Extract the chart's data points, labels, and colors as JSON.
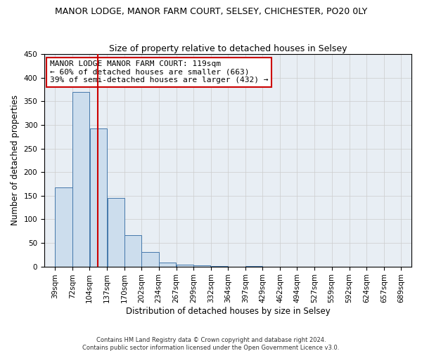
{
  "title": "MANOR LODGE, MANOR FARM COURT, SELSEY, CHICHESTER, PO20 0LY",
  "subtitle": "Size of property relative to detached houses in Selsey",
  "xlabel": "Distribution of detached houses by size in Selsey",
  "ylabel": "Number of detached properties",
  "property_size": 119,
  "property_label": "MANOR LODGE MANOR FARM COURT: 119sqm",
  "annotation_line1": "← 60% of detached houses are smaller (663)",
  "annotation_line2": "39% of semi-detached houses are larger (432) →",
  "bar_color": "#ccdded",
  "bar_edge_color": "#4477aa",
  "line_color": "#cc0000",
  "box_edge_color": "#cc0000",
  "ylim": [
    0,
    450
  ],
  "bin_edges": [
    39,
    72,
    104,
    137,
    170,
    202,
    234,
    267,
    299,
    332,
    364,
    397,
    429,
    462,
    494,
    527,
    559,
    592,
    624,
    657,
    689
  ],
  "counts": [
    167,
    370,
    293,
    145,
    67,
    30,
    8,
    4,
    3,
    1,
    0,
    1,
    0,
    0,
    0,
    0,
    0,
    0,
    0,
    0
  ],
  "grid_color": "#cccccc",
  "background_color": "#e8eef4",
  "title_fontsize": 9,
  "subtitle_fontsize": 9,
  "xlabel_fontsize": 8.5,
  "ylabel_fontsize": 8.5,
  "tick_fontsize": 7.5,
  "footer_fontsize": 6,
  "annotation_fontsize": 8
}
